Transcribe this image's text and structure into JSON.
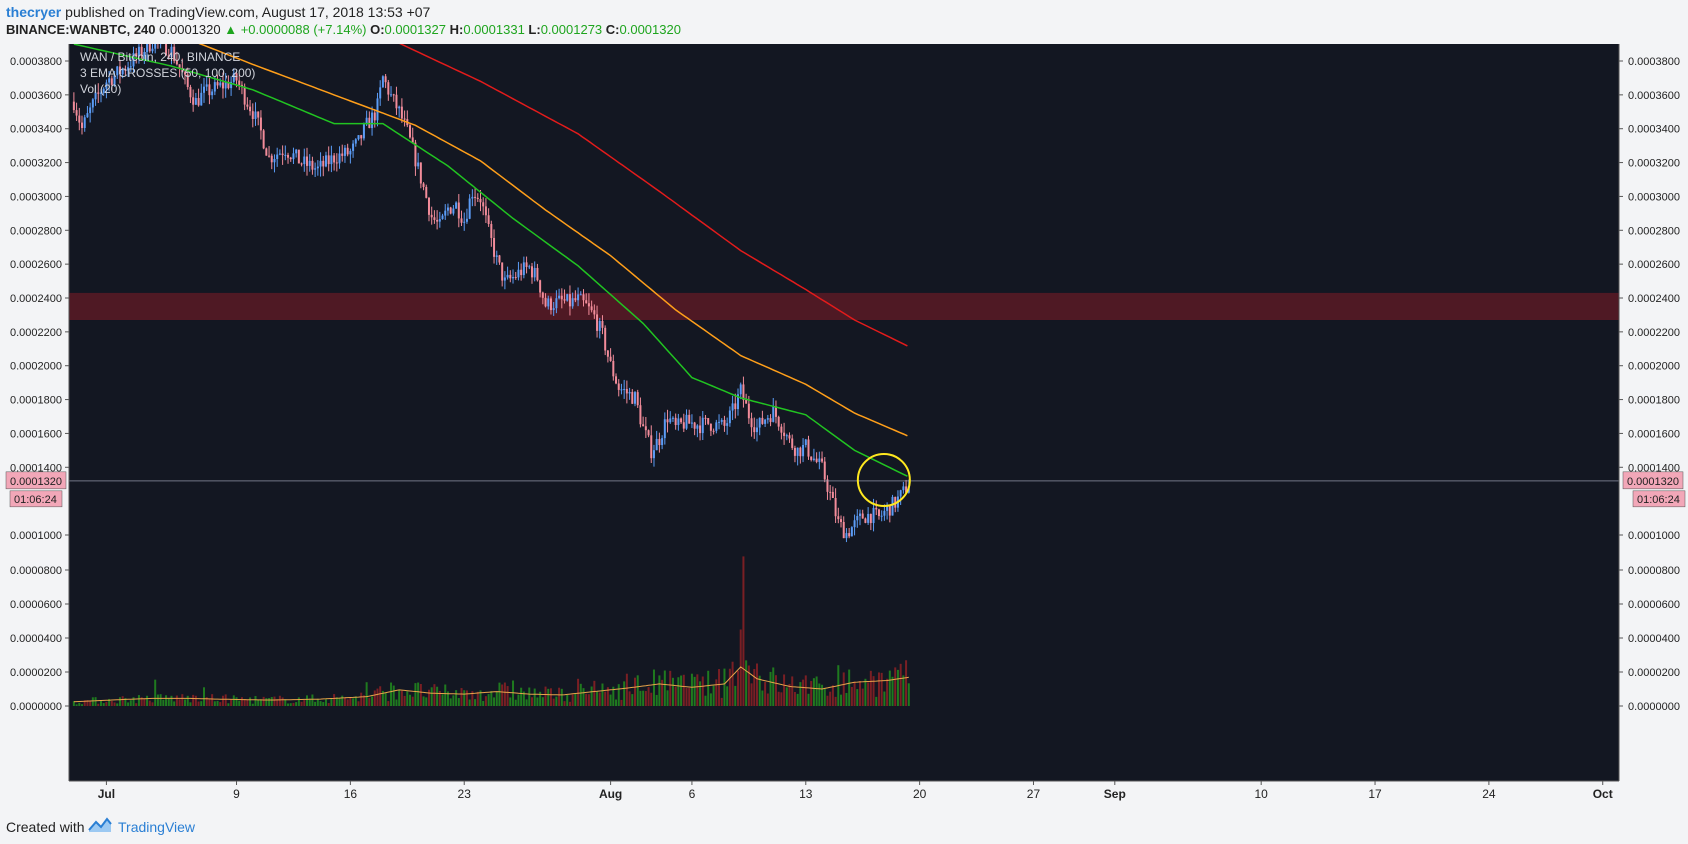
{
  "header": {
    "author": "thecryer",
    "published": " published on TradingView.com, August 17, 2018 13:53 +07",
    "symbol": "BINANCE:WANBTC, 240",
    "price": "0.0001320",
    "change": "▲ +0.0000088 (+7.14%)",
    "o_label": "O:",
    "o_value": "0.0001327",
    "h_label": "H:",
    "h_value": "0.0001331",
    "l_label": "L:",
    "l_value": "0.0001273",
    "c_label": "C:",
    "c_value": "0.0001320"
  },
  "legend": {
    "line1": "WAN / Bitcoin, 240, BINANCE",
    "line2": "3 EMA CROSSES (50, 100, 200)",
    "line3": "Vol (20)"
  },
  "footer": {
    "created": "Created with",
    "brand": "TradingView"
  },
  "colors": {
    "background": "#131722",
    "up": "#5b9cf6",
    "down": "#f28c9a",
    "ema50": "#21c421",
    "ema100": "#ff9f1a",
    "ema200": "#e31b1b",
    "zone": "#5a1a24",
    "highlight": "#ffe81f",
    "vol_up": "#1f7a1f",
    "vol_down": "#7a1f24",
    "vol_ma": "#e8a44a",
    "price_tag": "#f2a7b8"
  },
  "chart_data": {
    "type": "candlestick",
    "x_ticks": [
      {
        "label": "Jul",
        "day": 1
      },
      {
        "label": "9",
        "day": 9
      },
      {
        "label": "16",
        "day": 16
      },
      {
        "label": "23",
        "day": 23
      },
      {
        "label": "Aug",
        "day": 32
      },
      {
        "label": "6",
        "day": 37
      },
      {
        "label": "13",
        "day": 44
      },
      {
        "label": "20",
        "day": 51
      },
      {
        "label": "27",
        "day": 58
      },
      {
        "label": "Sep",
        "day": 63
      },
      {
        "label": "10",
        "day": 72
      },
      {
        "label": "17",
        "day": 79
      },
      {
        "label": "24",
        "day": 86
      },
      {
        "label": "Oct",
        "day": 93
      }
    ],
    "xlim": [
      -1.3,
      94
    ],
    "y_ticks": [
      "0.0003800",
      "0.0003600",
      "0.0003400",
      "0.0003200",
      "0.0003000",
      "0.0002800",
      "0.0002600",
      "0.0002400",
      "0.0002200",
      "0.0002000",
      "0.0001800",
      "0.0001600",
      "0.0001400",
      "0.0001000",
      "0.0000800",
      "0.0000600",
      "0.0000400",
      "0.0000200",
      "0.0000000"
    ],
    "last_price_label": "0.0001320",
    "last_price": 0.000132,
    "countdown": "01:06:24",
    "resistance_zone": [
      0.000227,
      0.000243
    ],
    "highlight_circle": {
      "day": 48.8,
      "price": 0.0001325
    },
    "price_path": [
      [
        -1.0,
        0.000356
      ],
      [
        -0.5,
        0.00034
      ],
      [
        0.2,
        0.000355
      ],
      [
        1.0,
        0.000368
      ],
      [
        2.0,
        0.000375
      ],
      [
        3.0,
        0.000384
      ],
      [
        4.0,
        0.000393
      ],
      [
        5.0,
        0.000386
      ],
      [
        5.5,
        0.000376
      ],
      [
        6.0,
        0.000364
      ],
      [
        6.5,
        0.000356
      ],
      [
        7.0,
        0.000361
      ],
      [
        8.0,
        0.000365
      ],
      [
        9.0,
        0.000369
      ],
      [
        9.5,
        0.000359
      ],
      [
        10.0,
        0.00035
      ],
      [
        10.5,
        0.000338
      ],
      [
        11.0,
        0.000323
      ],
      [
        12.0,
        0.000328
      ],
      [
        13.0,
        0.00032
      ],
      [
        14.0,
        0.000316
      ],
      [
        15.0,
        0.000323
      ],
      [
        16.0,
        0.000326
      ],
      [
        16.5,
        0.000332
      ],
      [
        17.0,
        0.000342
      ],
      [
        17.6,
        0.00035
      ],
      [
        18.0,
        0.00037
      ],
      [
        18.5,
        0.000359
      ],
      [
        19.0,
        0.00035
      ],
      [
        19.5,
        0.000338
      ],
      [
        20.0,
        0.000322
      ],
      [
        20.5,
        0.000305
      ],
      [
        21.0,
        0.000288
      ],
      [
        21.5,
        0.000282
      ],
      [
        22.0,
        0.000293
      ],
      [
        22.5,
        0.000295
      ],
      [
        23.0,
        0.000286
      ],
      [
        23.5,
        0.000303
      ],
      [
        24.0,
        0.000299
      ],
      [
        24.5,
        0.000279
      ],
      [
        25.0,
        0.000262
      ],
      [
        25.5,
        0.000249
      ],
      [
        26.0,
        0.000252
      ],
      [
        26.5,
        0.000256
      ],
      [
        27.0,
        0.000258
      ],
      [
        27.5,
        0.000252
      ],
      [
        28.0,
        0.000236
      ],
      [
        28.5,
        0.000237
      ],
      [
        29.0,
        0.000238
      ],
      [
        29.5,
        0.000237
      ],
      [
        30.0,
        0.000239
      ],
      [
        30.5,
        0.000235
      ],
      [
        31.0,
        0.000229
      ],
      [
        31.5,
        0.000218
      ],
      [
        32.0,
        0.0002
      ],
      [
        32.5,
        0.000187
      ],
      [
        33.0,
        0.000184
      ],
      [
        33.5,
        0.000181
      ],
      [
        34.0,
        0.000163
      ],
      [
        34.5,
        0.00015
      ],
      [
        35.0,
        0.000157
      ],
      [
        35.5,
        0.00017
      ],
      [
        36.0,
        0.000163
      ],
      [
        36.5,
        0.000166
      ],
      [
        37.0,
        0.000166
      ],
      [
        37.5,
        0.000165
      ],
      [
        38.0,
        0.000166
      ],
      [
        38.5,
        0.000165
      ],
      [
        39.0,
        0.000164
      ],
      [
        39.5,
        0.000173
      ],
      [
        40.0,
        0.000185
      ],
      [
        40.5,
        0.000171
      ],
      [
        41.0,
        0.000163
      ],
      [
        41.5,
        0.000169
      ],
      [
        42.0,
        0.000173
      ],
      [
        42.5,
        0.000165
      ],
      [
        43.0,
        0.000155
      ],
      [
        43.5,
        0.00015
      ],
      [
        44.0,
        0.000152
      ],
      [
        44.5,
        0.000145
      ],
      [
        45.0,
        0.000139
      ],
      [
        45.5,
        0.000124
      ],
      [
        46.0,
        0.000107
      ],
      [
        46.5,
        0.000101
      ],
      [
        47.0,
        0.000106
      ],
      [
        47.5,
        0.000111
      ],
      [
        48.0,
        0.000112
      ],
      [
        48.5,
        0.00011
      ],
      [
        49.0,
        0.000115
      ],
      [
        49.5,
        0.000119
      ],
      [
        50.0,
        0.000125
      ],
      [
        50.4,
        0.000132
      ]
    ],
    "ema50": [
      [
        -1.0,
        0.00039
      ],
      [
        5,
        0.000377
      ],
      [
        10,
        0.000363
      ],
      [
        15,
        0.000343
      ],
      [
        18,
        0.000343
      ],
      [
        22,
        0.000318
      ],
      [
        26,
        0.000287
      ],
      [
        30,
        0.000259
      ],
      [
        34,
        0.000225
      ],
      [
        37,
        0.000193
      ],
      [
        40,
        0.000181
      ],
      [
        44,
        0.000171
      ],
      [
        47,
        0.00015
      ],
      [
        50.4,
        0.000134
      ]
    ],
    "ema100": [
      [
        6,
        0.000393
      ],
      [
        10,
        0.000378
      ],
      [
        15,
        0.00036
      ],
      [
        20,
        0.000342
      ],
      [
        24,
        0.000321
      ],
      [
        28,
        0.000292
      ],
      [
        32,
        0.000265
      ],
      [
        36,
        0.000233
      ],
      [
        40,
        0.000206
      ],
      [
        44,
        0.000189
      ],
      [
        47,
        0.000172
      ],
      [
        50.4,
        0.000158
      ]
    ],
    "ema200": [
      [
        18,
        0.000395
      ],
      [
        24,
        0.000368
      ],
      [
        30,
        0.000337
      ],
      [
        35,
        0.000303
      ],
      [
        40,
        0.000268
      ],
      [
        44,
        0.000245
      ],
      [
        47,
        0.000227
      ],
      [
        50.4,
        0.000211
      ]
    ],
    "volume_path": [
      [
        -1,
        2.5e-06
      ],
      [
        2,
        3.8e-06
      ],
      [
        4,
        4.5e-06
      ],
      [
        6,
        4.5e-06
      ],
      [
        8,
        4e-06
      ],
      [
        11,
        3.5e-06
      ],
      [
        14,
        4e-06
      ],
      [
        17,
        5.5e-06
      ],
      [
        19,
        9.5e-06
      ],
      [
        21,
        7.5e-06
      ],
      [
        23,
        7e-06
      ],
      [
        25,
        8.5e-06
      ],
      [
        27,
        7e-06
      ],
      [
        29,
        6.5e-06
      ],
      [
        31,
        8.5e-06
      ],
      [
        33,
        1.05e-05
      ],
      [
        35,
        1.3e-05
      ],
      [
        37,
        1.1e-05
      ],
      [
        39,
        1.3e-05
      ],
      [
        40,
        2.3e-05
      ],
      [
        41,
        1.6e-05
      ],
      [
        43,
        1.15e-05
      ],
      [
        45,
        1e-05
      ],
      [
        47,
        1.4e-05
      ],
      [
        49,
        1.5e-05
      ],
      [
        50.4,
        1.7e-05
      ]
    ],
    "volume_spikes": [
      [
        4,
        1.55e-05
      ],
      [
        7,
        1.1e-05
      ],
      [
        17,
        1.4e-05
      ],
      [
        21,
        1.1e-05
      ],
      [
        26,
        1.5e-05
      ],
      [
        30,
        1.6e-05
      ],
      [
        33,
        1.9e-05
      ],
      [
        35,
        1.8e-05
      ],
      [
        37,
        1.9e-05
      ],
      [
        39,
        2.2e-05
      ],
      [
        40,
        4.5e-05
      ],
      [
        40.2,
        8.8e-05
      ],
      [
        41,
        2.5e-05
      ],
      [
        44,
        1.8e-05
      ],
      [
        46,
        2.4e-05
      ],
      [
        49,
        1.6e-05
      ],
      [
        50,
        1.8e-05
      ]
    ]
  }
}
